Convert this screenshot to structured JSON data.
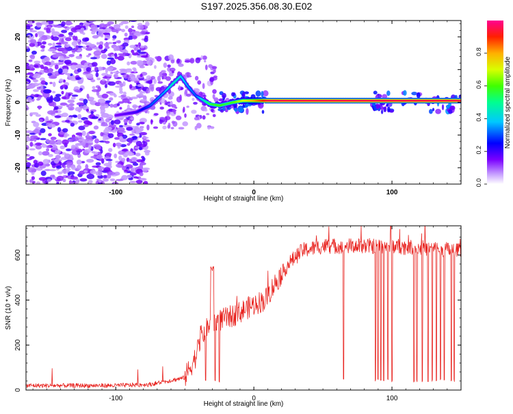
{
  "title": "S197.2025.356.08.30.E02",
  "chart_data": [
    {
      "type": "heatmap",
      "xlabel": "Height of straight line (km)",
      "ylabel": "Frequency (Hz)",
      "xlim": [
        -165,
        150
      ],
      "ylim": [
        -25,
        25
      ],
      "xticks": [
        -100,
        0,
        100
      ],
      "xtick_labels": [
        "-100",
        "0",
        "100"
      ],
      "yticks": [
        -20,
        -10,
        0,
        10,
        20
      ],
      "ytick_labels": [
        "-20",
        "-10",
        "0",
        "10",
        "20"
      ],
      "colorbar": {
        "label": "Normalized spectral amplitude",
        "range": [
          0,
          1
        ],
        "ticks": [
          0.0,
          0.2,
          0.4,
          0.6,
          0.8
        ],
        "tick_labels": [
          "0.0",
          "0.2",
          "0.4",
          "0.6",
          "0.8"
        ]
      },
      "ridge": {
        "x": [
          -100,
          -85,
          -75,
          -65,
          -58,
          -53,
          -48,
          -42,
          -38,
          -32,
          -25,
          -20,
          -15,
          -8,
          0,
          10,
          50,
          100,
          150
        ],
        "frequency": [
          -4,
          -3,
          -1,
          3,
          6,
          8,
          5,
          2,
          1,
          -0.5,
          -1,
          -0.5,
          0,
          0.5,
          0.5,
          0.5,
          0.5,
          0.5,
          0.5
        ],
        "amplitude": [
          0.15,
          0.2,
          0.3,
          0.35,
          0.45,
          0.4,
          0.35,
          0.3,
          0.4,
          0.55,
          0.6,
          0.55,
          0.6,
          0.7,
          0.8,
          0.95,
          0.95,
          0.95,
          0.95
        ]
      }
    },
    {
      "type": "line",
      "xlabel": "Height of straight line (km)",
      "ylabel": "SNR (10 * v/v)",
      "xlim": [
        -165,
        150
      ],
      "ylim": [
        0,
        730
      ],
      "xticks": [
        -100,
        0,
        100
      ],
      "xtick_labels": [
        "-100",
        "0",
        "100"
      ],
      "yticks": [
        0,
        200,
        400,
        600
      ],
      "ytick_labels": [
        "0",
        "200",
        "400",
        "600"
      ],
      "color": "#e8231f",
      "envelope": {
        "x": [
          -165,
          -100,
          -75,
          -50,
          -42,
          -38,
          -33,
          -25,
          -15,
          0,
          8,
          15,
          25,
          35,
          50,
          70,
          100,
          150
        ],
        "snr": [
          20,
          20,
          25,
          55,
          150,
          240,
          280,
          310,
          330,
          380,
          400,
          470,
          560,
          620,
          640,
          640,
          640,
          620
        ]
      },
      "dropouts": [
        -35,
        -30,
        -28,
        -25,
        65,
        88,
        90,
        92,
        94,
        97,
        99,
        100,
        116,
        118,
        122,
        126,
        129,
        132,
        135,
        138,
        143,
        145
      ]
    }
  ]
}
